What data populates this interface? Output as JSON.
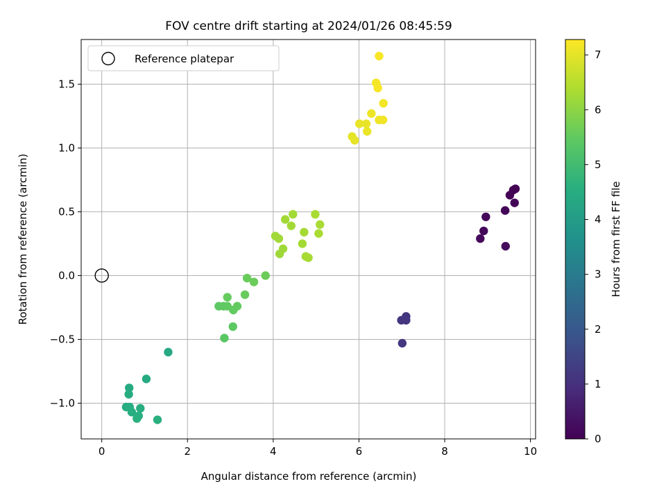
{
  "chart_data": {
    "type": "scatter",
    "title": "FOV centre drift starting at 2024/01/26 08:45:59",
    "xlabel": "Angular distance from reference (arcmin)",
    "ylabel": "Rotation from reference (arcmin)",
    "xlim": [
      -0.48,
      10.12
    ],
    "ylim": [
      -1.28,
      1.85
    ],
    "xticks": [
      0,
      2,
      4,
      6,
      8,
      10
    ],
    "xtick_labels": [
      "0",
      "2",
      "4",
      "6",
      "8",
      "10"
    ],
    "yticks": [
      -1.0,
      -0.5,
      0.0,
      0.5,
      1.0,
      1.5
    ],
    "ytick_labels": [
      "−1.0",
      "−0.5",
      "0.0",
      "0.5",
      "1.0",
      "1.5"
    ],
    "grid": true,
    "legend": {
      "placement": "upper-left",
      "entries": [
        "Reference platepar"
      ]
    },
    "reference_point": {
      "x": 0,
      "y": 0,
      "marker": "hollow-circle"
    },
    "colorbar": {
      "label": "Hours from first FF file",
      "colormap": "viridis",
      "range": [
        0,
        7.28
      ],
      "ticks": [
        0,
        1,
        2,
        3,
        4,
        5,
        6,
        7
      ],
      "tick_labels": [
        "0",
        "1",
        "2",
        "3",
        "4",
        "5",
        "6",
        "7"
      ]
    },
    "points": [
      {
        "x": 9.65,
        "y": 0.68,
        "h": 0.0
      },
      {
        "x": 9.6,
        "y": 0.67,
        "h": 0.03
      },
      {
        "x": 9.52,
        "y": 0.63,
        "h": 0.05
      },
      {
        "x": 9.63,
        "y": 0.57,
        "h": 0.08
      },
      {
        "x": 9.41,
        "y": 0.51,
        "h": 0.1
      },
      {
        "x": 8.96,
        "y": 0.46,
        "h": 0.12
      },
      {
        "x": 8.91,
        "y": 0.35,
        "h": 0.15
      },
      {
        "x": 8.83,
        "y": 0.29,
        "h": 0.17
      },
      {
        "x": 9.42,
        "y": 0.23,
        "h": 0.2
      },
      {
        "x": 7.1,
        "y": -0.32,
        "h": 1.1
      },
      {
        "x": 7.1,
        "y": -0.35,
        "h": 1.12
      },
      {
        "x": 6.99,
        "y": -0.35,
        "h": 1.14
      },
      {
        "x": 7.01,
        "y": -0.53,
        "h": 1.16
      },
      {
        "x": 1.55,
        "y": -0.6,
        "h": 4.4
      },
      {
        "x": 1.04,
        "y": -0.81,
        "h": 4.42
      },
      {
        "x": 0.64,
        "y": -0.88,
        "h": 4.44
      },
      {
        "x": 0.63,
        "y": -0.93,
        "h": 4.46
      },
      {
        "x": 0.57,
        "y": -1.03,
        "h": 4.48
      },
      {
        "x": 0.65,
        "y": -1.03,
        "h": 4.5
      },
      {
        "x": 0.9,
        "y": -1.04,
        "h": 4.52
      },
      {
        "x": 0.7,
        "y": -1.07,
        "h": 4.54
      },
      {
        "x": 0.86,
        "y": -1.1,
        "h": 4.56
      },
      {
        "x": 0.82,
        "y": -1.12,
        "h": 4.58
      },
      {
        "x": 1.3,
        "y": -1.13,
        "h": 4.6
      },
      {
        "x": 2.86,
        "y": -0.49,
        "h": 5.4
      },
      {
        "x": 3.06,
        "y": -0.4,
        "h": 5.42
      },
      {
        "x": 2.73,
        "y": -0.24,
        "h": 5.44
      },
      {
        "x": 2.84,
        "y": -0.24,
        "h": 5.46
      },
      {
        "x": 2.93,
        "y": -0.24,
        "h": 5.48
      },
      {
        "x": 3.07,
        "y": -0.27,
        "h": 5.5
      },
      {
        "x": 3.16,
        "y": -0.24,
        "h": 5.52
      },
      {
        "x": 2.93,
        "y": -0.17,
        "h": 5.54
      },
      {
        "x": 3.34,
        "y": -0.15,
        "h": 5.56
      },
      {
        "x": 3.39,
        "y": -0.02,
        "h": 5.58
      },
      {
        "x": 3.55,
        "y": -0.05,
        "h": 5.6
      },
      {
        "x": 3.82,
        "y": 0.0,
        "h": 5.62
      },
      {
        "x": 4.15,
        "y": 0.17,
        "h": 6.2
      },
      {
        "x": 4.23,
        "y": 0.21,
        "h": 6.21
      },
      {
        "x": 4.05,
        "y": 0.31,
        "h": 6.22
      },
      {
        "x": 4.13,
        "y": 0.29,
        "h": 6.23
      },
      {
        "x": 4.28,
        "y": 0.44,
        "h": 6.24
      },
      {
        "x": 4.42,
        "y": 0.39,
        "h": 6.25
      },
      {
        "x": 4.46,
        "y": 0.48,
        "h": 6.26
      },
      {
        "x": 4.68,
        "y": 0.25,
        "h": 6.27
      },
      {
        "x": 4.72,
        "y": 0.34,
        "h": 6.28
      },
      {
        "x": 4.76,
        "y": 0.15,
        "h": 6.29
      },
      {
        "x": 4.82,
        "y": 0.14,
        "h": 6.3
      },
      {
        "x": 4.98,
        "y": 0.48,
        "h": 6.31
      },
      {
        "x": 5.09,
        "y": 0.4,
        "h": 6.32
      },
      {
        "x": 5.06,
        "y": 0.33,
        "h": 6.33
      },
      {
        "x": 5.84,
        "y": 1.09,
        "h": 7.0
      },
      {
        "x": 5.9,
        "y": 1.06,
        "h": 7.02
      },
      {
        "x": 6.01,
        "y": 1.19,
        "h": 7.04
      },
      {
        "x": 6.17,
        "y": 1.19,
        "h": 7.06
      },
      {
        "x": 6.19,
        "y": 1.13,
        "h": 7.08
      },
      {
        "x": 6.29,
        "y": 1.27,
        "h": 7.1
      },
      {
        "x": 6.47,
        "y": 1.22,
        "h": 7.12
      },
      {
        "x": 6.56,
        "y": 1.22,
        "h": 7.14
      },
      {
        "x": 6.57,
        "y": 1.35,
        "h": 7.16
      },
      {
        "x": 6.4,
        "y": 1.51,
        "h": 7.18
      },
      {
        "x": 6.44,
        "y": 1.47,
        "h": 7.2
      },
      {
        "x": 6.47,
        "y": 1.72,
        "h": 7.22
      }
    ]
  }
}
